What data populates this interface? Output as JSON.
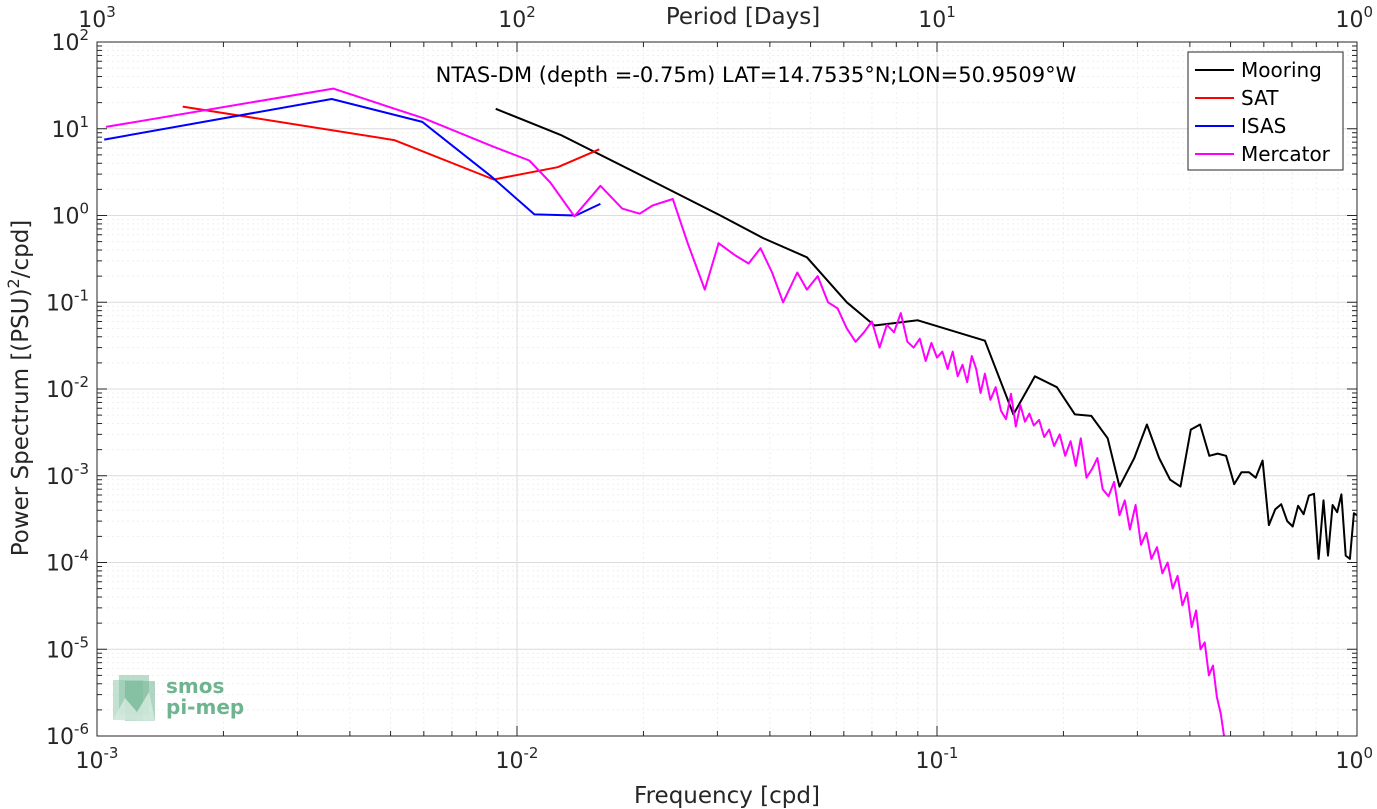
{
  "chart_data": {
    "type": "line",
    "title": "NTAS-DM (depth =-0.75m) LAT=14.7535°N;LON=50.9509°W",
    "xlabel": "Frequency [cpd]",
    "ylabel": "Power Spectrum [(PSU)²/cpd]",
    "top_xlabel": "Period [Days]",
    "xscale": "log",
    "yscale": "log",
    "xlim": [
      0.001,
      1
    ],
    "ylim": [
      1e-06,
      100
    ],
    "grid": true,
    "legend_position": "top-right",
    "x_ticks": [
      {
        "value": 0.001,
        "base": "10",
        "exp": "-3"
      },
      {
        "value": 0.01,
        "base": "10",
        "exp": "-2"
      },
      {
        "value": 0.1,
        "base": "10",
        "exp": "-1"
      },
      {
        "value": 1,
        "base": "10",
        "exp": "0"
      }
    ],
    "top_x_ticks": [
      {
        "value": 0.001,
        "base": "10",
        "exp": "3"
      },
      {
        "value": 0.01,
        "base": "10",
        "exp": "2"
      },
      {
        "value": 0.1,
        "base": "10",
        "exp": "1"
      },
      {
        "value": 1,
        "base": "10",
        "exp": "0"
      }
    ],
    "y_ticks": [
      {
        "value": 100,
        "base": "10",
        "exp": "2"
      },
      {
        "value": 10,
        "base": "10",
        "exp": "1"
      },
      {
        "value": 1,
        "base": "10",
        "exp": "0"
      },
      {
        "value": 0.1,
        "base": "10",
        "exp": "-1"
      },
      {
        "value": 0.01,
        "base": "10",
        "exp": "-2"
      },
      {
        "value": 0.001,
        "base": "10",
        "exp": "-3"
      },
      {
        "value": 0.0001,
        "base": "10",
        "exp": "-4"
      },
      {
        "value": 1e-05,
        "base": "10",
        "exp": "-5"
      },
      {
        "value": 1e-06,
        "base": "10",
        "exp": "-6"
      }
    ],
    "series": [
      {
        "name": "Mooring",
        "color": "#000000",
        "x": [
          0.0089,
          0.0127,
          0.021,
          0.0305,
          0.0385,
          0.049,
          0.061,
          0.071,
          0.09,
          0.13,
          0.152,
          0.171,
          0.193,
          0.213,
          0.233,
          0.255,
          0.272,
          0.295,
          0.316,
          0.338,
          0.359,
          0.38,
          0.402,
          0.423,
          0.445,
          0.466,
          0.488,
          0.51,
          0.531,
          0.553,
          0.574,
          0.596,
          0.617,
          0.639,
          0.66,
          0.682,
          0.703,
          0.724,
          0.746,
          0.768,
          0.79,
          0.81,
          0.832,
          0.853,
          0.875,
          0.897,
          0.918,
          0.94,
          0.962,
          0.983,
          1.0
        ],
        "y": [
          17,
          8.5,
          2.5,
          1.0,
          0.55,
          0.33,
          0.1,
          0.054,
          0.062,
          0.036,
          0.0051,
          0.014,
          0.0105,
          0.0051,
          0.0049,
          0.0027,
          0.00075,
          0.0016,
          0.0039,
          0.0016,
          0.0009,
          0.00075,
          0.0034,
          0.0039,
          0.0017,
          0.0018,
          0.0017,
          0.0008,
          0.0011,
          0.0011,
          0.00095,
          0.0015,
          0.00027,
          0.00041,
          0.00047,
          0.0003,
          0.00026,
          0.00045,
          0.00036,
          0.00059,
          0.00062,
          0.00011,
          0.00052,
          0.00012,
          0.00046,
          0.00038,
          0.00061,
          0.00012,
          0.00011,
          0.00037,
          0.00035
        ]
      },
      {
        "name": "SAT",
        "color": "#ff0000",
        "x": [
          0.0016,
          0.0051,
          0.0088,
          0.0125,
          0.0157
        ],
        "y": [
          18,
          7.4,
          2.6,
          3.6,
          5.8
        ]
      },
      {
        "name": "ISAS",
        "color": "#0000ff",
        "x": [
          0.00104,
          0.00362,
          0.00595,
          0.0087,
          0.011,
          0.0138,
          0.0158
        ],
        "y": [
          7.5,
          22,
          12,
          2.8,
          1.03,
          1.0,
          1.36
        ]
      },
      {
        "name": "Mercator",
        "color": "#ff00ff",
        "x": [
          0.00105,
          0.00365,
          0.006,
          0.0088,
          0.0107,
          0.012,
          0.0137,
          0.0158,
          0.0178,
          0.0196,
          0.021,
          0.0235,
          0.0255,
          0.028,
          0.0302,
          0.033,
          0.0356,
          0.038,
          0.0405,
          0.043,
          0.0465,
          0.049,
          0.052,
          0.055,
          0.058,
          0.061,
          0.064,
          0.067,
          0.07,
          0.073,
          0.076,
          0.079,
          0.082,
          0.085,
          0.088,
          0.091,
          0.094,
          0.097,
          0.1,
          0.103,
          0.106,
          0.109,
          0.112,
          0.115,
          0.118,
          0.121,
          0.124,
          0.127,
          0.13,
          0.134,
          0.138,
          0.142,
          0.146,
          0.15,
          0.154,
          0.158,
          0.162,
          0.166,
          0.17,
          0.175,
          0.18,
          0.185,
          0.19,
          0.196,
          0.202,
          0.208,
          0.214,
          0.22,
          0.227,
          0.234,
          0.241,
          0.248,
          0.256,
          0.264,
          0.272,
          0.28,
          0.288,
          0.297,
          0.306,
          0.315,
          0.324,
          0.334,
          0.344,
          0.354,
          0.364,
          0.374,
          0.384,
          0.394,
          0.404,
          0.414,
          0.424,
          0.434,
          0.444,
          0.454,
          0.464,
          0.474,
          0.484
        ],
        "y": [
          10.5,
          29,
          13.2,
          6.2,
          4.3,
          2.4,
          0.98,
          2.2,
          1.2,
          1.05,
          1.3,
          1.55,
          0.48,
          0.14,
          0.48,
          0.35,
          0.28,
          0.42,
          0.22,
          0.1,
          0.22,
          0.14,
          0.2,
          0.1,
          0.085,
          0.05,
          0.035,
          0.045,
          0.06,
          0.03,
          0.055,
          0.045,
          0.075,
          0.035,
          0.03,
          0.038,
          0.021,
          0.034,
          0.023,
          0.027,
          0.017,
          0.027,
          0.014,
          0.019,
          0.012,
          0.024,
          0.017,
          0.009,
          0.015,
          0.0075,
          0.0105,
          0.0056,
          0.0045,
          0.0088,
          0.0037,
          0.0065,
          0.0042,
          0.0052,
          0.0038,
          0.0044,
          0.0028,
          0.0034,
          0.0022,
          0.003,
          0.0017,
          0.0025,
          0.0013,
          0.0027,
          0.00095,
          0.0012,
          0.0016,
          0.0007,
          0.00058,
          0.00085,
          0.00035,
          0.00052,
          0.00024,
          0.00046,
          0.00016,
          0.00022,
          0.00011,
          0.00015,
          7.5e-05,
          0.0001,
          5e-05,
          7e-05,
          3.2e-05,
          4.5e-05,
          1.8e-05,
          2.8e-05,
          1e-05,
          1.2e-05,
          5e-06,
          6.5e-06,
          2.8e-06,
          1.8e-06,
          9e-07
        ]
      }
    ]
  },
  "logo": {
    "line1": "smos",
    "line2": "pi-mep",
    "color": "#6fb491"
  }
}
